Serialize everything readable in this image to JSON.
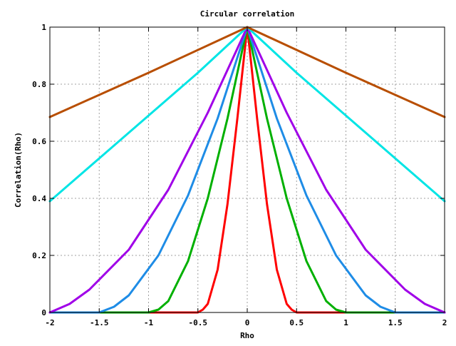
{
  "chart_data": {
    "type": "line",
    "title": "Circular correlation",
    "xlabel": "Rho",
    "ylabel": "Correlation(Rho)",
    "xlim": [
      -2,
      2
    ],
    "ylim": [
      0,
      1
    ],
    "grid": true,
    "x_ticks": [
      "-2",
      "-1.5",
      "-1",
      "-0.5",
      "0",
      "0.5",
      "1",
      "1.5",
      "2"
    ],
    "y_ticks": [
      "0",
      "0.2",
      "0.4",
      "0.6",
      "0.8",
      "1"
    ],
    "series": [
      {
        "color": "#ff0000",
        "x": [
          -2,
          -0.5,
          -0.45,
          -0.4,
          -0.3,
          -0.2,
          -0.1,
          0,
          0.1,
          0.2,
          0.3,
          0.4,
          0.45,
          0.5,
          2
        ],
        "y": [
          0,
          0,
          0.01,
          0.03,
          0.15,
          0.38,
          0.68,
          1,
          0.68,
          0.38,
          0.15,
          0.03,
          0.01,
          0,
          0
        ]
      },
      {
        "color": "#00b000",
        "x": [
          -2,
          -1,
          -0.9,
          -0.8,
          -0.6,
          -0.4,
          -0.2,
          0,
          0.2,
          0.4,
          0.6,
          0.8,
          0.9,
          1,
          2
        ],
        "y": [
          0,
          0,
          0.01,
          0.04,
          0.18,
          0.4,
          0.68,
          1,
          0.68,
          0.4,
          0.18,
          0.04,
          0.01,
          0,
          0
        ]
      },
      {
        "color": "#1e8ce6",
        "x": [
          -2,
          -1.5,
          -1.35,
          -1.2,
          -0.9,
          -0.6,
          -0.3,
          0,
          0.3,
          0.6,
          0.9,
          1.2,
          1.35,
          1.5,
          2
        ],
        "y": [
          0,
          0,
          0.02,
          0.06,
          0.2,
          0.41,
          0.68,
          1,
          0.68,
          0.41,
          0.2,
          0.06,
          0.02,
          0,
          0
        ]
      },
      {
        "color": "#a000e8",
        "x": [
          -2,
          -1.8,
          -1.6,
          -1.2,
          -0.8,
          -0.4,
          0,
          0.4,
          0.8,
          1.2,
          1.6,
          1.8,
          2
        ],
        "y": [
          0,
          0.03,
          0.08,
          0.22,
          0.43,
          0.7,
          1,
          0.7,
          0.43,
          0.22,
          0.08,
          0.03,
          0
        ]
      },
      {
        "color": "#00e5e5",
        "x": [
          -2,
          -1.5,
          -1,
          -0.5,
          0,
          0.5,
          1,
          1.5,
          2
        ],
        "y": [
          0.39,
          0.54,
          0.69,
          0.84,
          1,
          0.84,
          0.69,
          0.54,
          0.39
        ]
      },
      {
        "color": "#b84e00",
        "x": [
          -2,
          -1,
          0,
          1,
          2
        ],
        "y": [
          0.685,
          0.84,
          1,
          0.84,
          0.685
        ]
      }
    ]
  }
}
